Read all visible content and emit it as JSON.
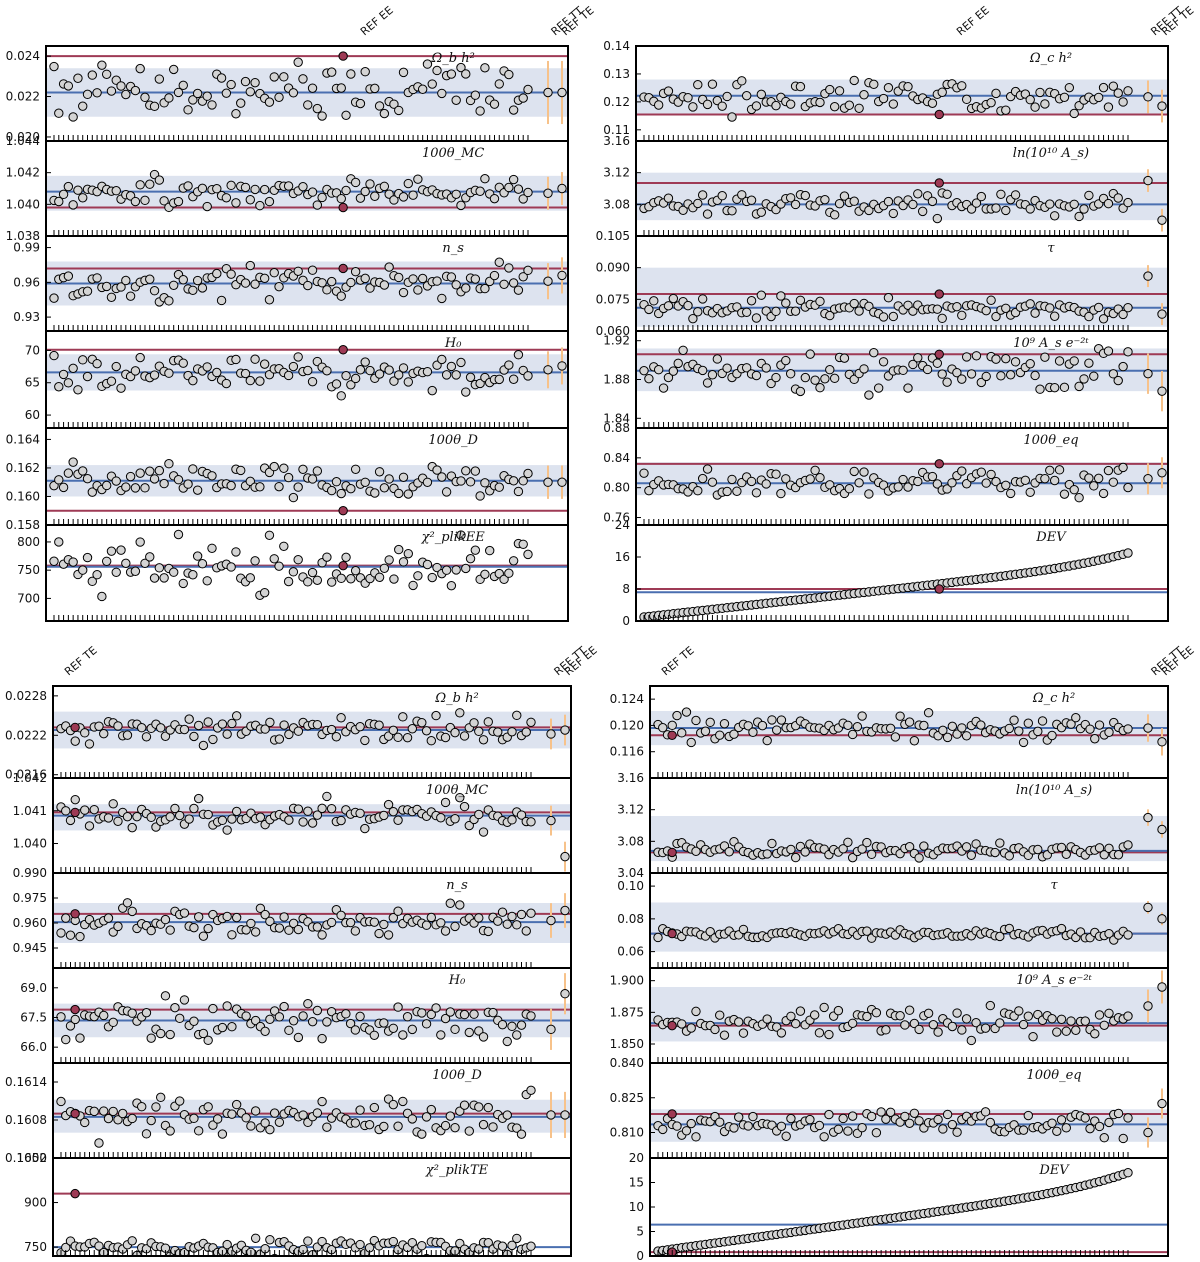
{
  "figure": {
    "description_markers": [
      "REF EE",
      "REF TT",
      "REF TE"
    ]
  },
  "colors": {
    "central": "#4a6fb0",
    "reference": "#9e3a55",
    "band": "#dde3ef",
    "point_fill": "#d4d4d4",
    "highlight_fill": "#9e3a55",
    "errorbar": "#f7c28a",
    "frame": "#000000"
  },
  "chart_data": [
    {
      "id": "A",
      "type": "scatter",
      "ref_labels": [
        {
          "text": "REF EE",
          "pos": 0.61
        },
        {
          "text": "REF TT",
          "pos": 0.975
        },
        {
          "text": "REF TE",
          "pos": 0.995
        }
      ],
      "panels": [
        {
          "title": "Ω_b h²",
          "ylim": [
            0.0198,
            0.0245
          ],
          "ticks": [
            "0.024",
            "0.022",
            "0.020"
          ],
          "tick_values": [
            0.024,
            0.022,
            0.02
          ],
          "central": 0.0222,
          "ref": 0.024,
          "band": [
            0.021,
            0.0234
          ],
          "spread": 0.0012,
          "ends": [
            0.0222,
            0.0222
          ],
          "seed": 11
        },
        {
          "title": "100θ_MC",
          "ylim": [
            1.038,
            1.044
          ],
          "ticks": [
            "1.044",
            "1.042",
            "1.040",
            "1.038"
          ],
          "tick_values": [
            1.044,
            1.042,
            1.04,
            1.038
          ],
          "central": 1.0408,
          "ref": 1.0398,
          "band": [
            1.0396,
            1.0418
          ],
          "spread": 0.0008,
          "ends": [
            1.0407,
            1.041
          ],
          "seed": 21
        },
        {
          "title": "n_s",
          "ylim": [
            0.918,
            1.0
          ],
          "ticks": [
            "0.99",
            "0.96",
            "0.93"
          ],
          "tick_values": [
            0.99,
            0.96,
            0.93
          ],
          "central": 0.959,
          "ref": 0.972,
          "band": [
            0.94,
            0.978
          ],
          "spread": 0.012,
          "ends": [
            0.961,
            0.966
          ],
          "seed": 31
        },
        {
          "title": "H₀",
          "ylim": [
            58.0,
            73.0
          ],
          "ticks": [
            "70",
            "65",
            "60"
          ],
          "tick_values": [
            70,
            65,
            60
          ],
          "central": 66.6,
          "ref": 70.1,
          "band": [
            63.8,
            69.4
          ],
          "spread": 2.2,
          "ends": [
            67.0,
            67.6
          ],
          "seed": 41
        },
        {
          "title": "100θ_D",
          "ylim": [
            0.158,
            0.1648
          ],
          "ticks": [
            "0.164",
            "0.162",
            "0.160",
            "0.158"
          ],
          "tick_values": [
            0.164,
            0.162,
            0.16,
            0.158
          ],
          "central": 0.1611,
          "ref": 0.159,
          "band": [
            0.16,
            0.1622
          ],
          "spread": 0.0009,
          "ends": [
            0.161,
            0.161
          ],
          "seed": 51
        },
        {
          "title": "χ²_plikEE",
          "ylim": [
            660,
            830
          ],
          "ticks": [
            "800",
            "750",
            "700"
          ],
          "tick_values": [
            800,
            750,
            700
          ],
          "central": 756,
          "ref": 758,
          "band": [
            756,
            756
          ],
          "spread": 38,
          "ends": [
            null,
            null
          ],
          "seed": 61
        }
      ]
    },
    {
      "id": "B",
      "type": "scatter",
      "ref_labels": [
        {
          "text": "REF EE",
          "pos": 0.61
        },
        {
          "text": "REF TT",
          "pos": 0.975
        },
        {
          "text": "REF TE",
          "pos": 0.995
        }
      ],
      "panels": [
        {
          "title": "Ω_c h²",
          "ylim": [
            0.106,
            0.14
          ],
          "ticks": [
            "0.14",
            "0.13",
            "0.12",
            "0.11"
          ],
          "tick_values": [
            0.14,
            0.13,
            0.12,
            0.11
          ],
          "central": 0.1222,
          "ref": 0.1155,
          "band": [
            0.1155,
            0.128
          ],
          "spread": 0.0045,
          "ends": [
            0.1218,
            0.1185
          ],
          "seed": 71
        },
        {
          "title": "ln(10¹⁰ A_s)",
          "ylim": [
            3.04,
            3.16
          ],
          "ticks": [
            "3.16",
            "3.12",
            "3.08"
          ],
          "tick_values": [
            3.16,
            3.12,
            3.08
          ],
          "central": 3.08,
          "ref": 3.107,
          "band": [
            3.06,
            3.12
          ],
          "spread": 0.011,
          "ends": [
            3.11,
            3.06
          ],
          "seed": 81
        },
        {
          "title": "τ",
          "ylim": [
            0.06,
            0.105
          ],
          "ticks": [
            "0.105",
            "0.090",
            "0.075",
            "0.060"
          ],
          "tick_values": [
            0.105,
            0.09,
            0.075,
            0.06
          ],
          "central": 0.071,
          "ref": 0.0775,
          "band": [
            0.062,
            0.09
          ],
          "spread": 0.004,
          "ends": [
            0.086,
            0.068
          ],
          "seed": 91
        },
        {
          "title": "10⁹ A_s e⁻²ᵗ",
          "ylim": [
            1.83,
            1.93
          ],
          "ticks": [
            "1.92",
            "1.88",
            "1.84"
          ],
          "tick_values": [
            1.92,
            1.88,
            1.84
          ],
          "central": 1.889,
          "ref": 1.906,
          "band": [
            1.868,
            1.912
          ],
          "spread": 0.016,
          "ends": [
            1.886,
            1.868
          ],
          "seed": 101
        },
        {
          "title": "100θ_eq",
          "ylim": [
            0.75,
            0.88
          ],
          "ticks": [
            "0.88",
            "0.84",
            "0.80",
            "0.76"
          ],
          "tick_values": [
            0.88,
            0.84,
            0.8,
            0.76
          ],
          "central": 0.806,
          "ref": 0.832,
          "band": [
            0.79,
            0.834
          ],
          "spread": 0.016,
          "ends": [
            0.812,
            0.82
          ],
          "seed": 111
        },
        {
          "title": "DEV",
          "ylim": [
            0,
            24
          ],
          "ticks": [
            "24",
            "16",
            "8",
            "0"
          ],
          "tick_values": [
            24,
            16,
            8,
            0
          ],
          "central": 7.2,
          "ref": 8.0,
          "band": [
            7.2,
            7.2
          ],
          "spread": 0,
          "ends": [
            null,
            null
          ],
          "seed": 121,
          "sorted": true
        }
      ]
    },
    {
      "id": "C",
      "type": "scatter",
      "ref_labels": [
        {
          "text": "REF TE",
          "pos": 0.03
        },
        {
          "text": "REF TT",
          "pos": 0.975
        },
        {
          "text": "REF EE",
          "pos": 0.995
        }
      ],
      "panels": [
        {
          "title": "Ω_b h²",
          "ylim": [
            0.02155,
            0.02295
          ],
          "ticks": [
            "0.0228",
            "0.0222",
            "0.0216"
          ],
          "tick_values": [
            0.0228,
            0.0222,
            0.0216
          ],
          "central": 0.02228,
          "ref": 0.02232,
          "band": [
            0.022,
            0.02256
          ],
          "spread": 0.00018,
          "ends": [
            0.02222,
            0.02228
          ],
          "seed": 131
        },
        {
          "title": "100θ_MC",
          "ylim": [
            1.0391,
            1.042
          ],
          "ticks": [
            "1.042",
            "1.041",
            "1.040"
          ],
          "tick_values": [
            1.042,
            1.041,
            1.04
          ],
          "central": 1.04085,
          "ref": 1.04095,
          "band": [
            1.0404,
            1.0412
          ],
          "spread": 0.00035,
          "ends": [
            1.0407,
            1.0396
          ],
          "seed": 141
        },
        {
          "title": "n_s",
          "ylim": [
            0.933,
            0.99
          ],
          "ticks": [
            "0.990",
            "0.975",
            "0.960",
            "0.945"
          ],
          "tick_values": [
            0.99,
            0.975,
            0.96,
            0.945
          ],
          "central": 0.9605,
          "ref": 0.9655,
          "band": [
            0.948,
            0.972
          ],
          "spread": 0.008,
          "ends": [
            0.9615,
            0.9675
          ],
          "seed": 151
        },
        {
          "title": "H₀",
          "ylim": [
            65.2,
            70.0
          ],
          "ticks": [
            "69.0",
            "67.5",
            "66.0"
          ],
          "tick_values": [
            69.0,
            67.5,
            66.0
          ],
          "central": 67.35,
          "ref": 67.9,
          "band": [
            66.5,
            68.2
          ],
          "spread": 0.8,
          "ends": [
            66.9,
            68.7
          ],
          "seed": 161
        },
        {
          "title": "100θ_D",
          "ylim": [
            0.1602,
            0.1617
          ],
          "ticks": [
            "0.1614",
            "0.1608",
            "0.1602"
          ],
          "tick_values": [
            0.1614,
            0.1608,
            0.1602
          ],
          "central": 0.16085,
          "ref": 0.1609,
          "band": [
            0.1606,
            0.16112
          ],
          "spread": 0.00028,
          "ends": [
            0.16088,
            0.16088
          ],
          "seed": 171
        },
        {
          "title": "χ²_plikTE",
          "ylim": [
            720,
            1050
          ],
          "ticks": [
            "1050",
            "900",
            "750"
          ],
          "tick_values": [
            1050,
            900,
            750
          ],
          "central": 750,
          "ref": 930,
          "band": [
            750,
            750
          ],
          "spread": 28,
          "ends": [
            null,
            null
          ],
          "seed": 181
        }
      ]
    },
    {
      "id": "D",
      "type": "scatter",
      "ref_labels": [
        {
          "text": "REF TE",
          "pos": 0.03
        },
        {
          "text": "REF TT",
          "pos": 0.975
        },
        {
          "text": "REF EE",
          "pos": 0.995
        }
      ],
      "panels": [
        {
          "title": "Ω_c h²",
          "ylim": [
            0.112,
            0.126
          ],
          "ticks": [
            "0.124",
            "0.120",
            "0.116"
          ],
          "tick_values": [
            0.124,
            0.12,
            0.116
          ],
          "central": 0.1196,
          "ref": 0.1185,
          "band": [
            0.117,
            0.1222
          ],
          "spread": 0.0016,
          "ends": [
            0.1196,
            0.1175
          ],
          "seed": 191
        },
        {
          "title": "ln(10¹⁰ A_s)",
          "ylim": [
            3.04,
            3.16
          ],
          "ticks": [
            "3.16",
            "3.12",
            "3.08",
            "3.04"
          ],
          "tick_values": [
            3.16,
            3.12,
            3.08,
            3.04
          ],
          "central": 3.068,
          "ref": 3.066,
          "band": [
            3.055,
            3.112
          ],
          "spread": 0.008,
          "ends": [
            3.11,
            3.095
          ],
          "seed": 201
        },
        {
          "title": "τ",
          "ylim": [
            0.05,
            0.108
          ],
          "ticks": [
            "0.10",
            "0.08",
            "0.06"
          ],
          "tick_values": [
            0.1,
            0.08,
            0.06
          ],
          "central": 0.071,
          "ref": 0.071,
          "band": [
            0.06,
            0.09
          ],
          "spread": 0.003,
          "ends": [
            0.087,
            0.08
          ],
          "seed": 211
        },
        {
          "title": "10⁹ A_s e⁻²ᵗ",
          "ylim": [
            1.835,
            1.91
          ],
          "ticks": [
            "1.900",
            "1.875",
            "1.850"
          ],
          "tick_values": [
            1.9,
            1.875,
            1.85
          ],
          "central": 1.8665,
          "ref": 1.8645,
          "band": [
            1.852,
            1.895
          ],
          "spread": 0.01,
          "ends": [
            1.88,
            1.895
          ],
          "seed": 221
        },
        {
          "title": "100θ_eq",
          "ylim": [
            0.799,
            0.84
          ],
          "ticks": [
            "0.840",
            "0.825",
            "0.810"
          ],
          "tick_values": [
            0.84,
            0.825,
            0.81
          ],
          "central": 0.8135,
          "ref": 0.818,
          "band": [
            0.806,
            0.82
          ],
          "spread": 0.005,
          "ends": [
            0.81,
            0.8225
          ],
          "seed": 231
        },
        {
          "title": "DEV",
          "ylim": [
            0,
            20
          ],
          "ticks": [
            "20",
            "15",
            "10",
            "5",
            "0"
          ],
          "tick_values": [
            20,
            15,
            10,
            5,
            0
          ],
          "central": 6.4,
          "ref": 0.8,
          "band": [
            6.4,
            6.4
          ],
          "spread": 0,
          "ends": [
            null,
            null
          ],
          "seed": 241,
          "sorted": true
        }
      ]
    }
  ]
}
